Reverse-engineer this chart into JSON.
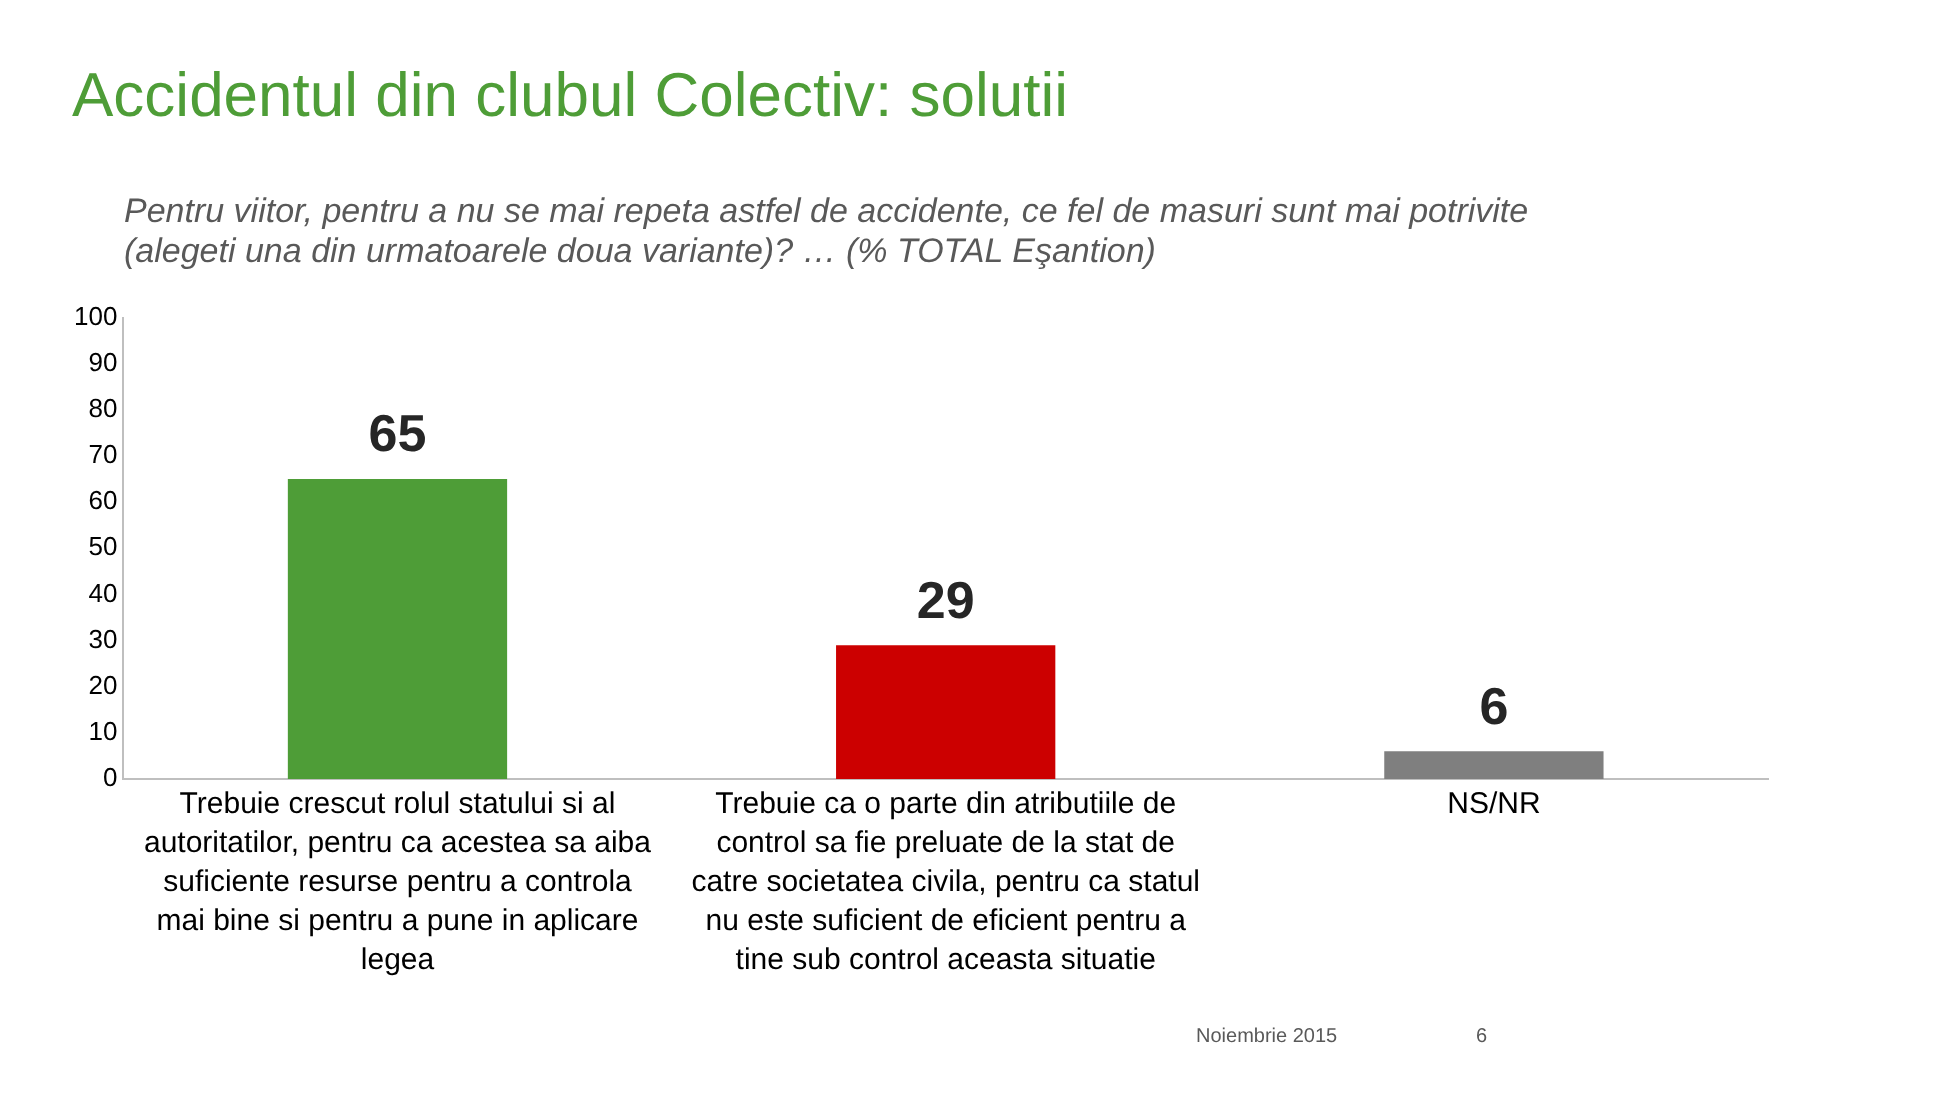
{
  "chart_data": {
    "type": "bar",
    "title": "Accidentul din clubul Colectiv: solutii",
    "subtitle": "Pentru viitor, pentru a nu se mai repeta astfel de accidente, ce fel de masuri sunt mai potrivite (alegeti una din urmatoarele doua variante)? … (% TOTAL Eşantion)",
    "categories": [
      "Trebuie crescut rolul statului si al autoritatilor, pentru ca acestea sa aiba suficiente resurse pentru a controla mai bine si pentru a pune in aplicare legea",
      "Trebuie ca o parte din atributiile de control sa fie preluate de la stat de catre societatea civila, pentru ca statul nu este suficient de eficient pentru a tine sub control aceasta situatie",
      "NS/NR"
    ],
    "values": [
      65,
      29,
      6
    ],
    "colors": [
      "#4e9d37",
      "#cc0000",
      "#7f7f7f"
    ],
    "ylim": [
      0,
      100
    ],
    "yticks": [
      0,
      10,
      20,
      30,
      40,
      50,
      60,
      70,
      80,
      90,
      100
    ],
    "grid": false,
    "legend": false,
    "data_labels": true,
    "annotations": [
      "Noiembrie 2015",
      "6"
    ]
  }
}
